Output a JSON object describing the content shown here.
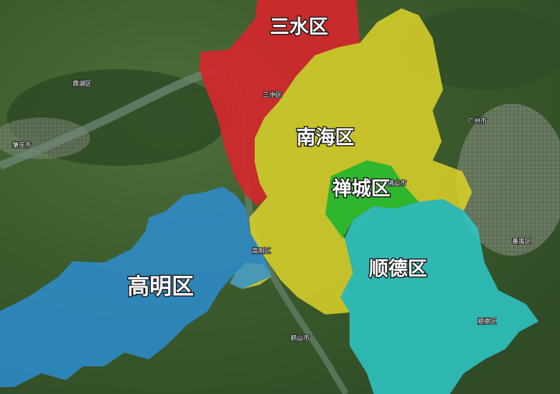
{
  "districts": {
    "sanshui": {
      "label": "三水区",
      "color": "#d6262c"
    },
    "nanhai": {
      "label": "南海区",
      "color": "#d8cf2a"
    },
    "chancheng": {
      "label": "禅城区",
      "color": "#2fbf2f"
    },
    "shunde": {
      "label": "顺德区",
      "color": "#2ec9c9"
    },
    "gaoming": {
      "label": "高明区",
      "color": "#2c8fd6"
    }
  },
  "places": {
    "sanshui_town": "三水区",
    "zhaoqing": "肇庆市",
    "guangzhou": "广州市",
    "foshan": "佛山市",
    "gaoming_town": "高明区",
    "heshan": "鹤山市",
    "shunde_town": "顺德区",
    "panyu": "番禺区",
    "dinghu": "鼎湖区"
  }
}
